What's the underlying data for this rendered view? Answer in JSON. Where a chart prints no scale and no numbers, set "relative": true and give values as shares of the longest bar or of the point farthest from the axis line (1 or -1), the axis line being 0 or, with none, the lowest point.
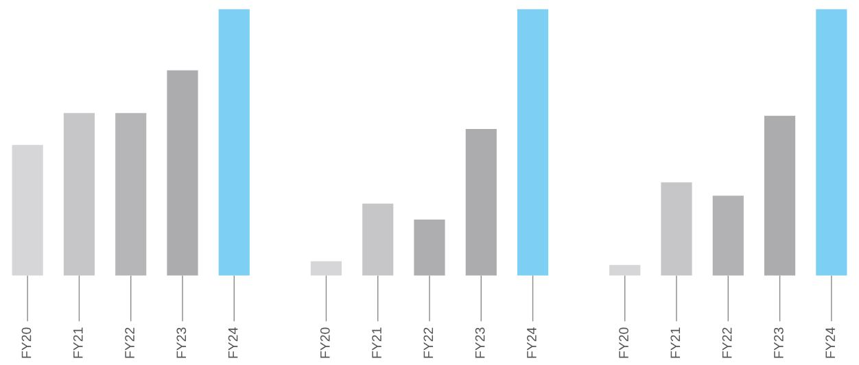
{
  "chart_data": [
    {
      "type": "bar",
      "relative": true,
      "categories": [
        "FY20",
        "FY21",
        "FY22",
        "FY23",
        "FY24"
      ],
      "values": [
        0.49,
        0.61,
        0.61,
        0.77,
        1
      ],
      "colors": [
        "#d6d6d8",
        "#c6c6c8",
        "#b6b6b9",
        "#acacaf",
        "#7dd0f3"
      ],
      "grid": false,
      "legend": false
    },
    {
      "type": "bar",
      "relative": true,
      "categories": [
        "FY20",
        "FY21",
        "FY22",
        "FY23",
        "FY24"
      ],
      "values": [
        0.054,
        0.27,
        0.21,
        0.55,
        1
      ],
      "colors": [
        "#d6d6d8",
        "#c6c6c8",
        "#aeaeb1",
        "#acacaf",
        "#7dd0f3"
      ],
      "grid": false,
      "legend": false
    },
    {
      "type": "bar",
      "relative": true,
      "categories": [
        "FY20",
        "FY21",
        "FY22",
        "FY23",
        "FY24"
      ],
      "values": [
        0.04,
        0.35,
        0.3,
        0.6,
        1
      ],
      "colors": [
        "#d6d6d8",
        "#c6c6c8",
        "#b2b2b5",
        "#acacaf",
        "#7dd0f3"
      ],
      "grid": false,
      "legend": false
    }
  ]
}
